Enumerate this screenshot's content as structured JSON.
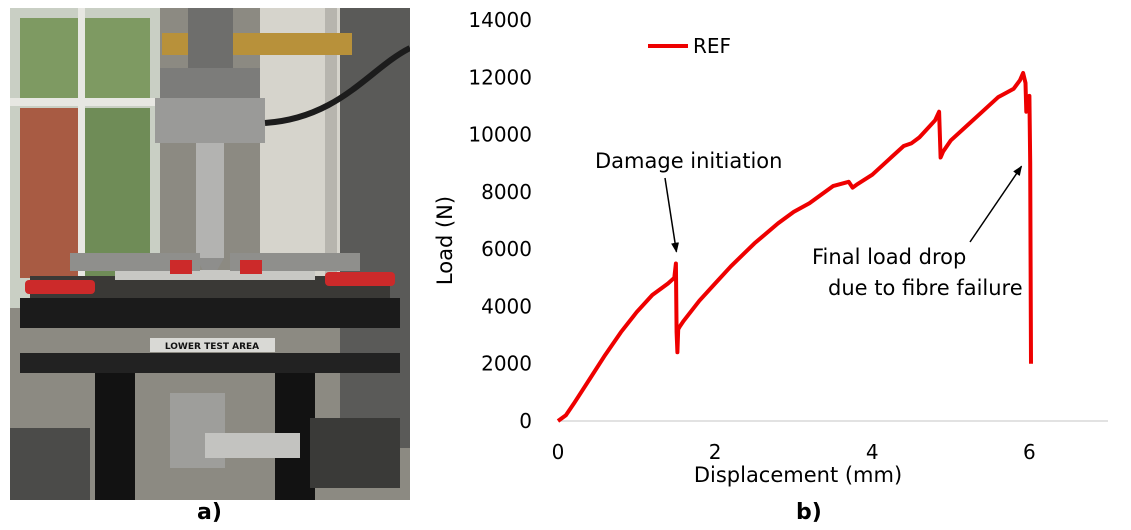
{
  "panel_labels": {
    "a": "a)",
    "b": "b)"
  },
  "photo": {
    "sign_text": "LOWER TEST AREA"
  },
  "chart_data": {
    "type": "line",
    "xlabel": "Displacement (mm)",
    "ylabel": "Load (N)",
    "xlim": [
      0,
      7
    ],
    "ylim": [
      0,
      14000
    ],
    "x_ticks": [
      0,
      2,
      4,
      6
    ],
    "y_ticks": [
      0,
      2000,
      4000,
      6000,
      8000,
      10000,
      12000,
      14000
    ],
    "grid": false,
    "legend_position": "top-left",
    "series": [
      {
        "name": "REF",
        "color": "#ee0000",
        "x": [
          0,
          0.1,
          0.2,
          0.4,
          0.6,
          0.8,
          1.0,
          1.2,
          1.4,
          1.48,
          1.5,
          1.51,
          1.52,
          1.53,
          1.55,
          1.6,
          1.8,
          2.0,
          2.2,
          2.5,
          2.8,
          3.0,
          3.2,
          3.5,
          3.7,
          3.75,
          3.8,
          4.0,
          4.2,
          4.4,
          4.5,
          4.6,
          4.8,
          4.85,
          4.87,
          4.9,
          5.0,
          5.2,
          5.4,
          5.6,
          5.7,
          5.8,
          5.88,
          5.92,
          5.95,
          5.96,
          5.97,
          5.98,
          6.0,
          6.01,
          6.02,
          6.02
        ],
        "y": [
          0,
          200,
          600,
          1450,
          2300,
          3100,
          3800,
          4400,
          4800,
          5000,
          5500,
          3100,
          2400,
          3200,
          3300,
          3500,
          4200,
          4800,
          5400,
          6200,
          6900,
          7300,
          7600,
          8200,
          8350,
          8150,
          8250,
          8600,
          9100,
          9600,
          9700,
          9900,
          10500,
          10800,
          9200,
          9400,
          9800,
          10300,
          10800,
          11300,
          11450,
          11600,
          11900,
          12150,
          11800,
          10800,
          11300,
          11000,
          11350,
          9000,
          2000,
          2000
        ]
      }
    ],
    "annotations": [
      {
        "text": "Damage initiation",
        "x": 1.52,
        "y": 5700
      },
      {
        "lines": [
          "Final load drop",
          "due to fibre failure"
        ],
        "x": 5.95,
        "y": 9100
      }
    ]
  }
}
